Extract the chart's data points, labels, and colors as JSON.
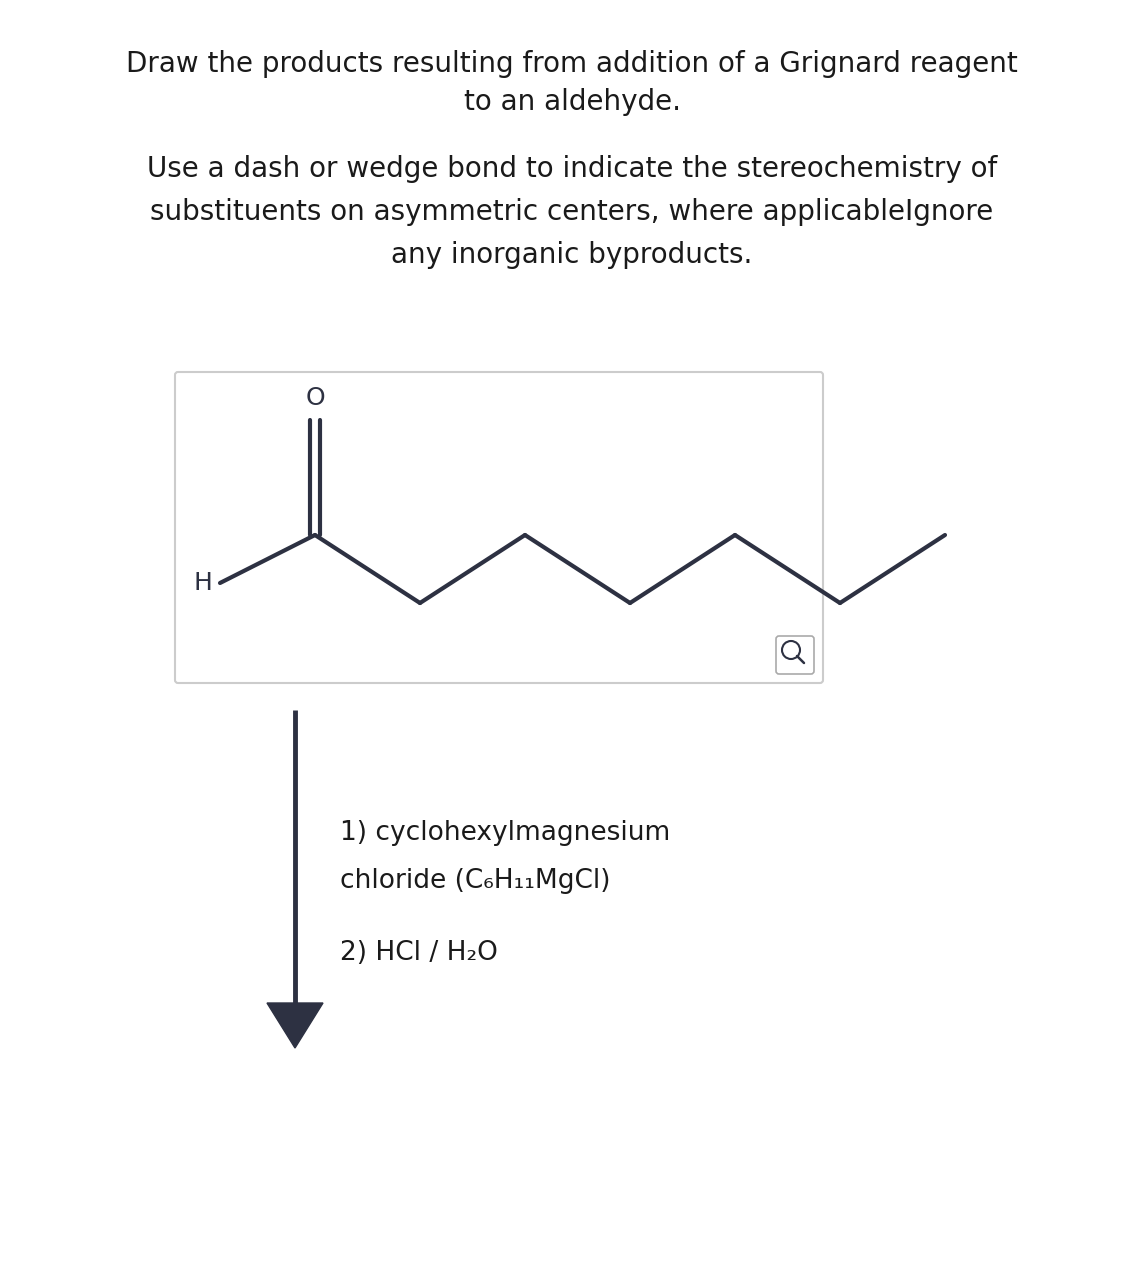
{
  "title_line1": "Draw the products resulting from addition of a Grignard reagent",
  "title_line2": "to an aldehyde.",
  "subtitle_line1": "Use a dash or wedge bond to indicate the stereochemistry of",
  "subtitle_line2": "substituents on asymmetric centers, where applicableIgnore",
  "subtitle_line3": "any inorganic byproducts.",
  "reagent_line1": "1) cyclohexylmagnesium",
  "reagent_line2": "chloride (C₆H₁₁MgCl)",
  "reagent_line3": "2) HCl / H₂O",
  "line_color": "#2d3142",
  "text_color": "#1a1a1a",
  "bg_color": "#ffffff",
  "title_fontsize": 20,
  "subtitle_fontsize": 20,
  "reagent_fontsize": 19
}
